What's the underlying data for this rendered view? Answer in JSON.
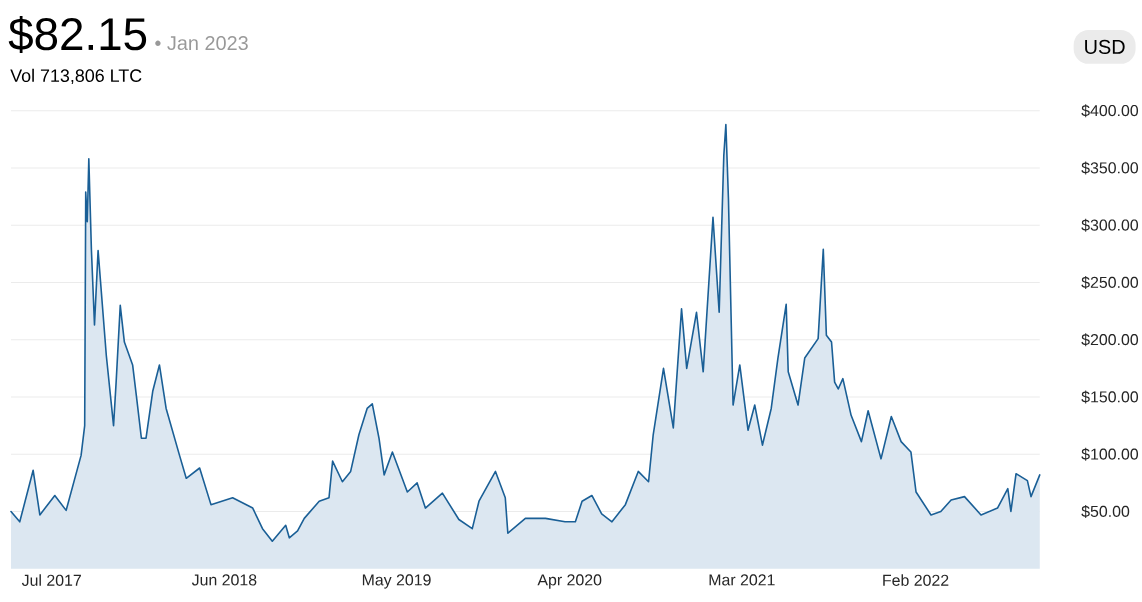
{
  "chart_data": {
    "type": "area",
    "title": "$82.15",
    "subtitle": "• Jan 2023",
    "annotations": [
      "Vol 713,806 LTC",
      "USD"
    ],
    "color": "#1a5f96",
    "x": [
      "2017-04-13",
      "2017-04-30",
      "2017-05-26",
      "2017-06-08",
      "2017-07-07",
      "2017-07-29",
      "2017-08-27",
      "2017-09-03",
      "2017-09-05",
      "2017-09-08",
      "2017-09-11",
      "2017-09-16",
      "2017-09-22",
      "2017-09-29",
      "2017-10-15",
      "2017-10-29",
      "2017-11-03",
      "2017-11-11",
      "2017-11-19",
      "2017-12-05",
      "2017-12-12",
      "2017-12-22",
      "2017-12-31",
      "2018-01-13",
      "2018-01-26",
      "2018-02-08",
      "2018-03-06",
      "2018-03-19",
      "2018-04-14",
      "2018-05-06",
      "2018-06-17",
      "2018-07-26",
      "2018-08-14",
      "2018-09-02",
      "2018-09-28",
      "2018-10-05",
      "2018-10-21",
      "2018-11-03",
      "2018-12-02",
      "2018-12-21",
      "2018-12-28",
      "2019-01-16",
      "2019-02-01",
      "2019-02-17",
      "2019-03-05",
      "2019-03-15",
      "2019-03-28",
      "2019-04-07",
      "2019-04-23",
      "2019-05-22",
      "2019-06-10",
      "2019-06-26",
      "2019-07-29",
      "2019-08-30",
      "2019-09-25",
      "2019-10-08",
      "2019-11-09",
      "2019-11-28",
      "2019-12-03",
      "2020-01-06",
      "2020-02-14",
      "2020-03-23",
      "2020-04-12",
      "2020-04-25",
      "2020-05-14",
      "2020-06-02",
      "2020-06-22",
      "2020-07-18",
      "2020-08-12",
      "2020-09-01",
      "2020-09-10",
      "2020-09-30",
      "2020-10-19",
      "2020-11-04",
      "2020-11-14",
      "2020-12-03",
      "2020-12-16",
      "2021-01-04",
      "2021-01-16",
      "2021-01-25",
      "2021-01-29",
      "2021-02-03",
      "2021-02-12",
      "2021-02-25",
      "2021-03-13",
      "2021-03-26",
      "2021-04-10",
      "2021-04-27",
      "2021-05-10",
      "2021-05-26",
      "2021-05-30",
      "2021-06-18",
      "2021-07-01",
      "2021-07-27",
      "2021-08-06",
      "2021-08-12",
      "2021-08-22",
      "2021-08-28",
      "2021-09-04",
      "2021-09-13",
      "2021-09-29",
      "2021-10-19",
      "2021-11-01",
      "2021-11-26",
      "2021-12-16",
      "2022-01-04",
      "2022-01-23",
      "2022-02-02",
      "2022-03-03",
      "2022-03-22",
      "2022-04-11",
      "2022-05-07",
      "2022-06-08",
      "2022-07-10",
      "2022-07-30",
      "2022-08-05",
      "2022-08-15",
      "2022-09-06",
      "2022-09-13",
      "2022-09-30"
    ],
    "values": [
      50,
      41,
      86,
      47,
      64,
      51,
      99,
      125,
      329,
      303,
      358,
      279,
      213,
      278,
      186,
      125,
      163,
      230,
      198,
      178,
      152,
      114,
      114,
      155,
      178,
      140,
      99,
      79,
      88,
      56,
      62,
      53,
      35,
      24,
      38,
      27,
      33,
      44,
      59,
      62,
      94,
      76,
      85,
      117,
      140,
      144,
      114,
      82,
      102,
      67,
      75,
      53,
      66,
      43,
      35,
      59,
      85,
      62,
      31,
      44,
      44,
      41,
      41,
      59,
      64,
      48,
      41,
      56,
      85,
      76,
      117,
      175,
      123,
      227,
      175,
      224,
      172,
      307,
      224,
      361,
      388,
      323,
      143,
      178,
      121,
      143,
      108,
      140,
      184,
      231,
      172,
      143,
      184,
      201,
      279,
      204,
      198,
      163,
      157,
      166,
      134,
      111,
      138,
      96,
      133,
      111,
      102,
      67,
      47,
      50,
      60,
      63,
      47,
      53,
      70,
      50,
      83,
      77,
      63,
      82
    ],
    "xlim": [
      "2017-04-13",
      "2022-09-30"
    ],
    "xticks": [
      {
        "value": "2017-07-01",
        "label": "Jul 2017"
      },
      {
        "value": "2018-06-01",
        "label": "Jun 2018"
      },
      {
        "value": "2019-05-01",
        "label": "May 2019"
      },
      {
        "value": "2020-04-01",
        "label": "Apr 2020"
      },
      {
        "value": "2021-03-01",
        "label": "Mar 2021"
      },
      {
        "value": "2022-02-01",
        "label": "Feb 2022"
      }
    ],
    "ylim": [
      0,
      400
    ],
    "yticks": [
      {
        "value": 50,
        "label": "$50.00"
      },
      {
        "value": 100,
        "label": "$100.00"
      },
      {
        "value": 150,
        "label": "$150.00"
      },
      {
        "value": 200,
        "label": "$200.00"
      },
      {
        "value": 250,
        "label": "$250.00"
      },
      {
        "value": 300,
        "label": "$300.00"
      },
      {
        "value": 350,
        "label": "$350.00"
      },
      {
        "value": 400,
        "label": "$400.00"
      }
    ],
    "grid": "y"
  }
}
